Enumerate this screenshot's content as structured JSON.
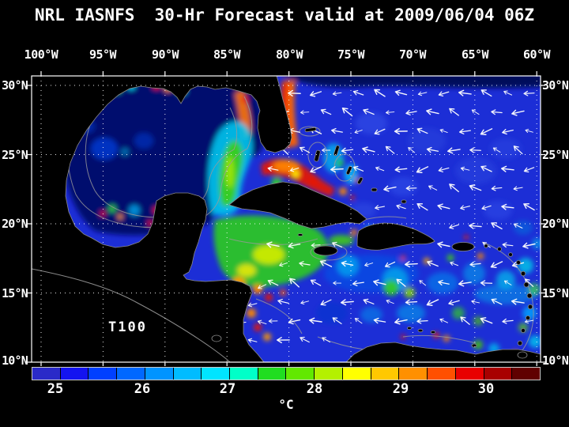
{
  "title": "NRL IASNFS  30-Hr Forecast valid at 2009/06/04 06Z",
  "map": {
    "x_axis": {
      "labels": [
        "100°W",
        "95°W",
        "90°W",
        "85°W",
        "80°W",
        "75°W",
        "70°W",
        "65°W",
        "60°W"
      ]
    },
    "y_axis": {
      "labels": [
        "30°N",
        "25°N",
        "20°N",
        "15°N",
        "10°N"
      ]
    },
    "annotation": "T100"
  },
  "colorbar": {
    "tick_labels": [
      "25",
      "26",
      "27",
      "28",
      "29",
      "30"
    ],
    "unit": "°C",
    "colors": [
      "#2a2ac8",
      "#1414f0",
      "#0040ff",
      "#0068ff",
      "#0094ff",
      "#00bcff",
      "#00e4ff",
      "#00ffc8",
      "#20dd20",
      "#62e800",
      "#b4f000",
      "#ffff00",
      "#ffc800",
      "#ff9000",
      "#ff5000",
      "#e80000",
      "#a80000",
      "#600000"
    ]
  },
  "colors": {
    "background": "#000000",
    "ocean_base": "#1c2ed6",
    "land": "#000000",
    "grid": "#ffffff",
    "vectors": "#ffffff",
    "contours": "#9a9a9a"
  }
}
